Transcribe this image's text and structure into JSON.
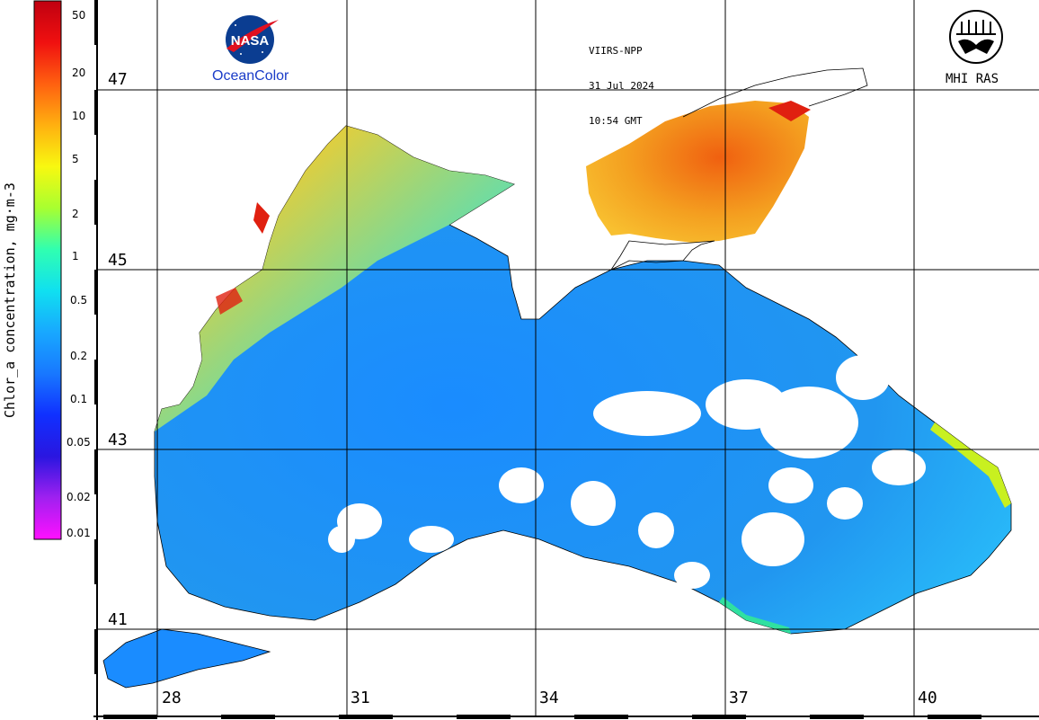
{
  "title": {
    "satellite": "VIIRS-NPP",
    "date": "31 Jul 2024",
    "time": "10:54 GMT"
  },
  "logos": {
    "nasa_emblem_text": "NASA",
    "nasa_caption": "OceanColor",
    "mhi_caption": "MHI RAS"
  },
  "colorbar": {
    "title": "Chlor_a concentration, mg·m-3",
    "ticks": [
      "50",
      "20",
      "10",
      "5",
      "2",
      "1",
      "0.5",
      "0.2",
      "0.1",
      "0.05",
      "0.02",
      "0.01"
    ],
    "scale": "log",
    "range": [
      0.01,
      60
    ],
    "colors": [
      "#ff10ff",
      "#a020f0",
      "#2a16e0",
      "#1030ff",
      "#1878ff",
      "#18a8ff",
      "#10e0f0",
      "#30ffb0",
      "#a8ff30",
      "#f8f810",
      "#ffb010",
      "#ff6010",
      "#f01010",
      "#c00010"
    ]
  },
  "grid": {
    "lat_labels": [
      "47",
      "45",
      "43",
      "41"
    ],
    "lon_labels": [
      "28",
      "31",
      "34",
      "37",
      "40"
    ]
  },
  "map": {
    "land_color": "#ffffff",
    "coast_color": "#000000",
    "sea_color_low": "#1a8cff",
    "sea_color_mid": "#28b8f8",
    "shelf_color": "#f0d030",
    "azov_color": "#f4a020",
    "coastal_high_color": "#e02010"
  }
}
